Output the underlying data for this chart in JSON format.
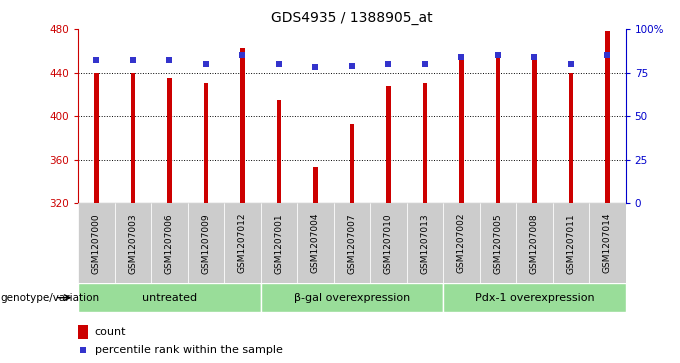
{
  "title": "GDS4935 / 1388905_at",
  "samples": [
    "GSM1207000",
    "GSM1207003",
    "GSM1207006",
    "GSM1207009",
    "GSM1207012",
    "GSM1207001",
    "GSM1207004",
    "GSM1207007",
    "GSM1207010",
    "GSM1207013",
    "GSM1207002",
    "GSM1207005",
    "GSM1207008",
    "GSM1207011",
    "GSM1207014"
  ],
  "counts": [
    440,
    440,
    435,
    430,
    463,
    415,
    353,
    393,
    428,
    430,
    455,
    453,
    453,
    440,
    478
  ],
  "percentiles": [
    82,
    82,
    82,
    80,
    85,
    80,
    78,
    79,
    80,
    80,
    84,
    85,
    84,
    80,
    85
  ],
  "groups": [
    {
      "label": "untreated",
      "start": 0,
      "end": 5
    },
    {
      "label": "β-gal overexpression",
      "start": 5,
      "end": 10
    },
    {
      "label": "Pdx-1 overexpression",
      "start": 10,
      "end": 15
    }
  ],
  "ymin": 320,
  "ymax": 480,
  "yticks": [
    320,
    360,
    400,
    440,
    480
  ],
  "bar_color": "#cc0000",
  "percentile_color": "#3333cc",
  "bar_width": 0.12,
  "group_color": "#99dd99",
  "sample_box_color": "#cccccc",
  "bg_color": "#ffffff",
  "xlabel": "genotype/variation",
  "legend_count_label": "count",
  "legend_percentile_label": "percentile rank within the sample",
  "right_yticks": [
    0,
    25,
    50,
    75,
    100
  ],
  "right_yticklabels": [
    "0",
    "25",
    "50",
    "75",
    "100%"
  ]
}
